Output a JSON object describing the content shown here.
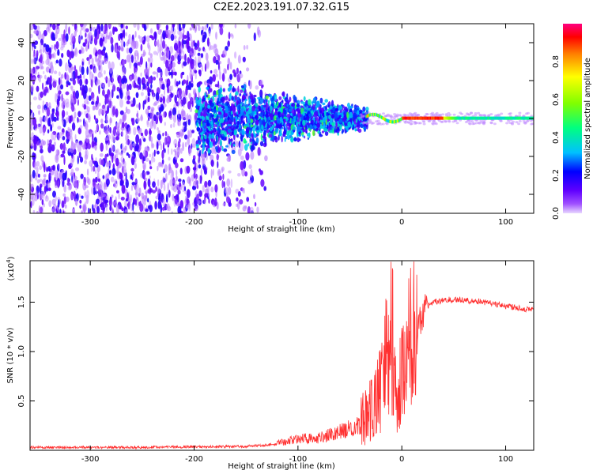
{
  "title": "C2E2.2023.191.07.32.G15",
  "chart_data": [
    {
      "type": "heatmap",
      "xlabel": "Height of straight line (km)",
      "ylabel": "Frequency (Hz)",
      "xlim": [
        -358,
        127
      ],
      "ylim": [
        -50,
        50
      ],
      "xticks": [
        -300,
        -200,
        -100,
        0,
        100
      ],
      "yticks": [
        -40,
        -20,
        0,
        20,
        40
      ],
      "colorbar": {
        "label": "Normalized spectral amplitude",
        "range": [
          0.0,
          1.0
        ],
        "ticks": [
          "0.0",
          "0.2",
          "0.4",
          "0.6",
          "0.8"
        ],
        "colors": [
          "#e8d8ff",
          "#8000ff",
          "#0000ff",
          "#00c0ff",
          "#00ff80",
          "#80ff00",
          "#ffff00",
          "#ff8000",
          "#ff0000",
          "#ff0080"
        ]
      },
      "features": [
        {
          "x_range": [
            -358,
            -140
          ],
          "freq_range": [
            -50,
            50
          ],
          "amplitude": 0.1,
          "pattern": "noise"
        },
        {
          "x_range": [
            -195,
            -35
          ],
          "freq_range": [
            -18,
            18
          ],
          "amplitude": 0.3,
          "pattern": "spread"
        },
        {
          "x_range": [
            -35,
            127
          ],
          "freq_range": [
            -2,
            2
          ],
          "amplitude": 0.9,
          "pattern": "narrow line"
        }
      ]
    },
    {
      "type": "line",
      "xlabel": "Height of straight line (km)",
      "ylabel": "SNR (10 * v/v)",
      "multiplier_label": "(x10",
      "multiplier_exp": "4",
      "xlim": [
        -358,
        127
      ],
      "ylim": [
        0,
        1.92
      ],
      "xticks": [
        -300,
        -200,
        -100,
        0,
        100
      ],
      "yticks": [
        0.5,
        1.0,
        1.5
      ],
      "ytick_labels": [
        "0.5",
        "1.0",
        "1.5"
      ],
      "color": "#ff3030",
      "series": [
        {
          "x": [
            -358,
            -300,
            -250,
            -200,
            -150,
            -120,
            -100,
            -80,
            -60,
            -40,
            -30,
            -20,
            -15,
            -10,
            -5,
            0,
            10,
            20,
            30,
            40,
            50,
            60,
            80,
            100,
            127
          ],
          "values": [
            0.03,
            0.03,
            0.03,
            0.035,
            0.04,
            0.06,
            0.1,
            0.1,
            0.15,
            0.2,
            0.3,
            0.5,
            0.8,
            0.7,
            0.4,
            0.6,
            1.0,
            1.4,
            1.5,
            1.52,
            1.53,
            1.52,
            1.5,
            1.46,
            1.42
          ]
        }
      ]
    }
  ]
}
